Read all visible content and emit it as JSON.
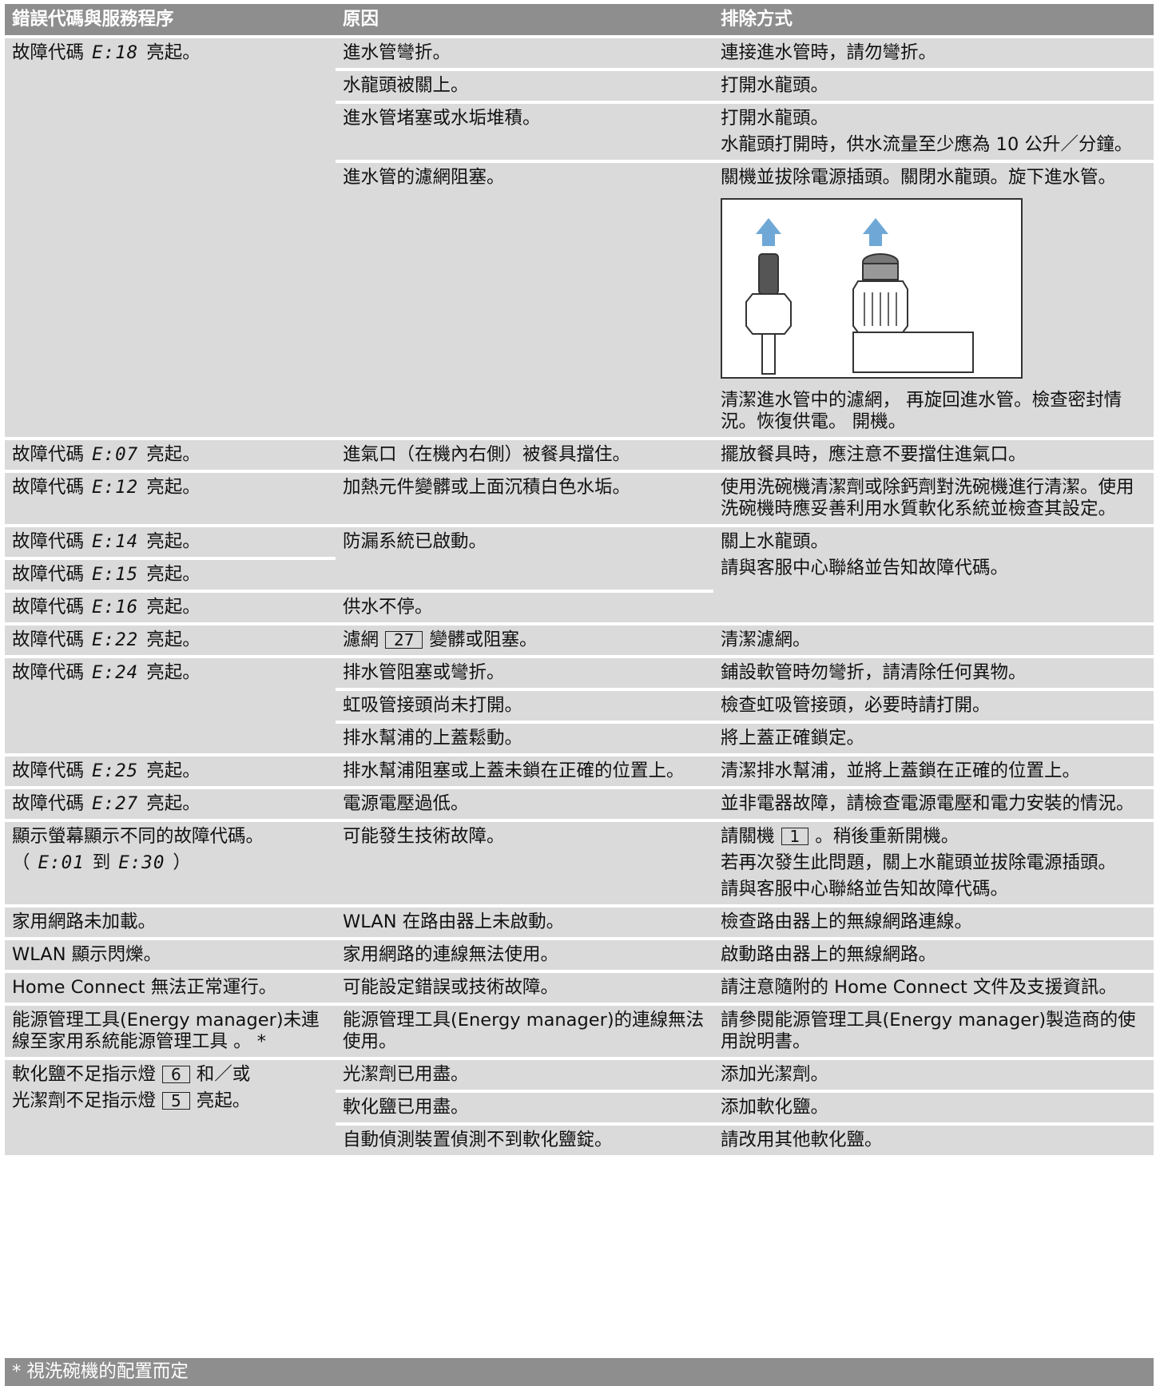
{
  "header": [
    "錯誤代碼與服務程序",
    "原因",
    "排除方式"
  ],
  "rows": [
    {
      "code": [
        "故障代碼",
        {
          "code": "E:18"
        },
        "亮起。"
      ],
      "causes": [
        {
          "text": "進水管彎折。",
          "remedies": [
            "連接進水管時，請勿彎折。"
          ]
        },
        {
          "text": "水龍頭被關上。",
          "remedies": [
            "打開水龍頭。"
          ]
        },
        {
          "text": "進水管堵塞或水垢堆積。",
          "remedies": [
            "打開水龍頭。",
            "水龍頭打開時，供水流量至少應為 10 公升／分鐘。"
          ]
        },
        {
          "text": "進水管的濾網阻塞。",
          "remedies": [
            "關機並拔除電源插頭。關閉水龍頭。旋下進水管。",
            "清潔進水管中的濾網， 再旋回進水管。檢查密封情況。恢復供電。 開機。"
          ]
        }
      ]
    },
    {
      "code": [
        "故障代碼",
        {
          "code": "E:07"
        },
        "亮起。"
      ],
      "causes": [
        {
          "text": "進氣口（在機內右側）被餐具擋住。",
          "remedies": [
            "擺放餐具時，應注意不要擋住進氣口。"
          ]
        }
      ]
    },
    {
      "code": [
        "故障代碼",
        {
          "code": "E:12"
        },
        "亮起。"
      ],
      "causes": [
        {
          "text": "加熱元件變髒或上面沉積白色水垢。",
          "remedies": [
            "使用洗碗機清潔劑或除鈣劑對洗碗機進行清潔。使用洗碗機時應妥善利用水質軟化系統並檢查其設定。"
          ]
        }
      ]
    },
    {
      "codes": [
        [
          "故障代碼",
          {
            "code": "E:14"
          },
          "亮起。"
        ],
        [
          "故障代碼",
          {
            "code": "E:15"
          },
          "亮起。"
        ],
        [
          "故障代碼",
          {
            "code": "E:16"
          },
          "亮起。"
        ]
      ],
      "causes": [
        "防漏系統已啟動。",
        "供水不停。"
      ],
      "remedies": [
        "關上水龍頭。",
        "請與客服中心聯絡並告知故障代碼。"
      ]
    },
    {
      "code": [
        "故障代碼",
        {
          "code": "E:22"
        },
        "亮起。"
      ],
      "causes": [
        {
          "text": [
            "濾網",
            {
              "box": "27"
            },
            "變髒或阻塞。"
          ],
          "remedies": [
            "清潔濾網。"
          ]
        }
      ]
    },
    {
      "code": [
        "故障代碼",
        {
          "code": "E:24"
        },
        "亮起。"
      ],
      "causes": [
        {
          "text": "排水管阻塞或彎折。",
          "remedies": [
            "鋪設軟管時勿彎折，請清除任何異物。"
          ]
        },
        {
          "text": "虹吸管接頭尚未打開。",
          "remedies": [
            "檢查虹吸管接頭，必要時請打開。"
          ]
        },
        {
          "text": "排水幫浦的上蓋鬆動。",
          "remedies": [
            "將上蓋正確鎖定。"
          ]
        }
      ]
    },
    {
      "code": [
        "故障代碼",
        {
          "code": "E:25"
        },
        "亮起。"
      ],
      "causes": [
        {
          "text": "排水幫浦阻塞或上蓋未鎖在正確的位置上。",
          "remedies": [
            "清潔排水幫浦，並將上蓋鎖在正確的位置上。"
          ]
        }
      ]
    },
    {
      "code": [
        "故障代碼",
        {
          "code": "E:27"
        },
        "亮起。"
      ],
      "causes": [
        {
          "text": "電源電壓過低。",
          "remedies": [
            "並非電器故障，請檢查電源電壓和電力安裝的情況。"
          ]
        }
      ]
    },
    {
      "code": [
        [
          "顯示螢幕顯示不同的故障代碼。"
        ],
        [
          "（",
          {
            "code": "E:01"
          },
          "到",
          {
            "code": "E:30"
          },
          "）"
        ]
      ],
      "causes": [
        {
          "text": "可能發生技術故障。",
          "remedies": [
            [
              "請關機",
              {
                "box": "1"
              },
              "。稍後重新開機。"
            ],
            "若再次發生此問題，關上水龍頭並拔除電源插頭。",
            "請與客服中心聯絡並告知故障代碼。"
          ]
        }
      ]
    },
    {
      "code": "家用網路未加載。",
      "causes": [
        {
          "text": "WLAN 在路由器上未啟動。",
          "remedies": [
            "檢查路由器上的無線網路連線。"
          ]
        }
      ]
    },
    {
      "code": "WLAN 顯示閃爍。",
      "causes": [
        {
          "text": "家用網路的連線無法使用。",
          "remedies": [
            "啟動路由器上的無線網路。"
          ]
        }
      ]
    },
    {
      "code": "Home Connect 無法正常運行。",
      "causes": [
        {
          "text": "可能設定錯誤或技術故障。",
          "remedies": [
            "請注意隨附的 Home Connect 文件及支援資訊。"
          ]
        }
      ]
    },
    {
      "code": "能源管理工具(Energy manager)未連線至家用系統能源管理工具 。 *",
      "causes": [
        {
          "text": "能源管理工具(Energy manager)的連線無法使用。",
          "remedies": [
            "請參閱能源管理工具(Energy manager)製造商的使用說明書。"
          ]
        }
      ]
    },
    {
      "code": [
        [
          "軟化鹽不足指示燈",
          {
            "box": "6"
          },
          "和／或"
        ],
        [
          "光潔劑不足指示燈",
          {
            "box": "5"
          },
          "亮起。"
        ]
      ],
      "causes": [
        {
          "text": "光潔劑已用盡。",
          "remedies": [
            "添加光潔劑。"
          ]
        },
        {
          "text": "軟化鹽已用盡。",
          "remedies": [
            "添加軟化鹽。"
          ]
        },
        {
          "text": "自動偵測裝置偵測不到軟化鹽錠。",
          "remedies": [
            "請改用其他軟化鹽。"
          ]
        }
      ]
    }
  ],
  "footnote": "* 視洗碗機的配置而定"
}
